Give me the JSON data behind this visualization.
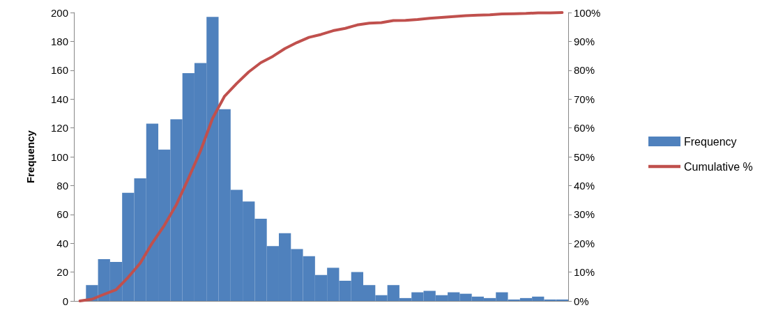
{
  "chart_data": {
    "type": "bar",
    "ylabel": "Frequency",
    "categories": [
      null,
      null,
      null,
      null,
      null,
      null,
      null,
      null,
      null,
      null,
      null,
      null,
      null,
      null,
      null,
      null,
      null,
      null,
      null,
      null,
      null,
      null,
      null,
      null,
      null,
      null,
      null,
      null,
      null,
      null,
      null,
      null,
      null,
      null,
      null,
      null,
      null,
      null,
      null,
      null,
      null
    ],
    "series": [
      {
        "name": "Frequency",
        "color": "#4f81bd",
        "values": [
          0,
          11,
          29,
          27,
          75,
          85,
          123,
          105,
          126,
          158,
          165,
          197,
          133,
          77,
          69,
          57,
          38,
          47,
          36,
          31,
          18,
          23,
          14,
          20,
          11,
          4,
          11,
          2,
          6,
          7,
          4,
          6,
          5,
          3,
          2,
          6,
          1,
          2,
          3,
          1,
          1
        ]
      },
      {
        "name": "Cumulative %",
        "type": "line",
        "axis": "y2",
        "color": "#c0504d",
        "values": [
          0,
          0.6,
          2.3,
          3.9,
          8.2,
          13.1,
          20.1,
          26.2,
          33.4,
          42.5,
          52.0,
          63.3,
          71.0,
          75.4,
          79.4,
          82.6,
          84.8,
          87.5,
          89.6,
          91.4,
          92.4,
          93.7,
          94.5,
          95.7,
          96.3,
          96.5,
          97.2,
          97.3,
          97.6,
          98.0,
          98.3,
          98.6,
          98.9,
          99.1,
          99.2,
          99.5,
          99.6,
          99.7,
          99.9,
          99.9,
          100
        ]
      }
    ],
    "ylim": [
      0,
      200
    ],
    "yticks": [
      0,
      20,
      40,
      60,
      80,
      100,
      120,
      140,
      160,
      180,
      200
    ],
    "y2lim": [
      0,
      100
    ],
    "y2ticks": [
      {
        "value": 0,
        "label": "0%"
      },
      {
        "value": 10,
        "label": "10%"
      },
      {
        "value": 20,
        "label": "20%"
      },
      {
        "value": 30,
        "label": "30%"
      },
      {
        "value": 40,
        "label": "40%"
      },
      {
        "value": 50,
        "label": "50%"
      },
      {
        "value": 60,
        "label": "60%"
      },
      {
        "value": 70,
        "label": "70%"
      },
      {
        "value": 80,
        "label": "80%"
      },
      {
        "value": 90,
        "label": "90%"
      },
      {
        "value": 100,
        "label": "100%"
      }
    ],
    "grid": false,
    "legend": "right",
    "marker": "none",
    "line_style": "solid"
  }
}
